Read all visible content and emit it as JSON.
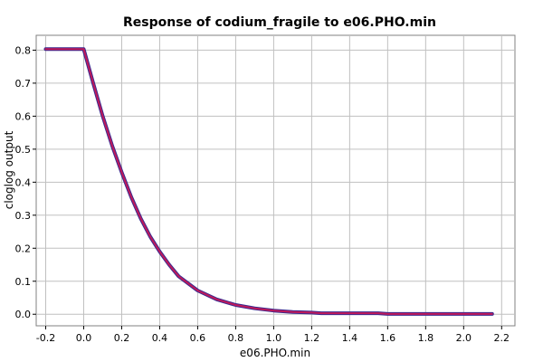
{
  "chart_data": {
    "type": "line",
    "title": "Response of codium_fragile to e06.PHO.min",
    "xlabel": "e06.PHO.min",
    "ylabel": "cloglog output",
    "xlim": [
      -0.25,
      2.27
    ],
    "ylim": [
      -0.035,
      0.845
    ],
    "x_ticks": [
      "-0.2",
      "0.0",
      "0.2",
      "0.4",
      "0.6",
      "0.8",
      "1.0",
      "1.2",
      "1.4",
      "1.6",
      "1.8",
      "2.0",
      "2.2"
    ],
    "x_tick_values": [
      -0.2,
      0.0,
      0.2,
      0.4,
      0.6,
      0.8,
      1.0,
      1.2,
      1.4,
      1.6,
      1.8,
      2.0,
      2.2
    ],
    "y_ticks": [
      "0.0",
      "0.1",
      "0.2",
      "0.3",
      "0.4",
      "0.5",
      "0.6",
      "0.7",
      "0.8"
    ],
    "y_tick_values": [
      0.0,
      0.1,
      0.2,
      0.3,
      0.4,
      0.5,
      0.6,
      0.7,
      0.8
    ],
    "grid": true,
    "series": [
      {
        "color": "#c0195a",
        "band_color": "#3b2a8f",
        "x": [
          -0.2,
          0.0,
          0.05,
          0.1,
          0.15,
          0.2,
          0.25,
          0.3,
          0.35,
          0.4,
          0.45,
          0.5,
          0.6,
          0.7,
          0.8,
          0.9,
          1.0,
          1.1,
          1.2,
          1.25,
          1.4,
          1.55,
          1.6,
          1.8,
          2.0,
          2.15
        ],
        "y": [
          0.803,
          0.803,
          0.7,
          0.6,
          0.51,
          0.43,
          0.355,
          0.29,
          0.235,
          0.19,
          0.15,
          0.115,
          0.072,
          0.045,
          0.028,
          0.018,
          0.011,
          0.007,
          0.005,
          0.003,
          0.003,
          0.003,
          0.001,
          0.001,
          0.001,
          0.001
        ]
      }
    ]
  }
}
